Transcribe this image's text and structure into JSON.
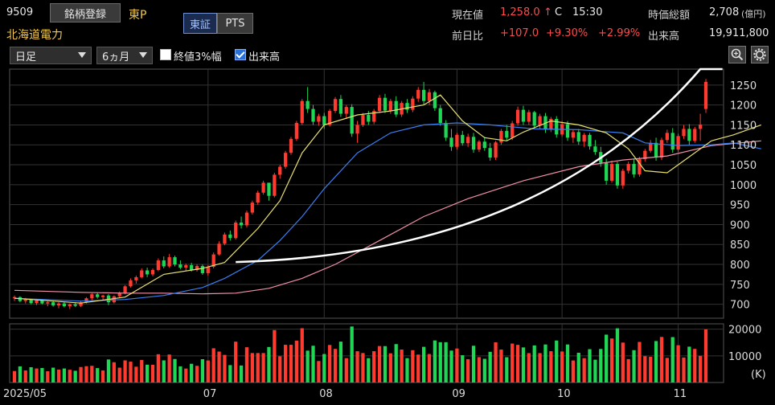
{
  "header": {
    "code": "9509",
    "register_button": "銘柄登録",
    "market": "東P",
    "company": "北海道電力",
    "tabs": [
      {
        "label": "東証",
        "active": true
      },
      {
        "label": "PTS",
        "active": false
      }
    ],
    "current_price_label": "現在値",
    "current_price": "1,258.0",
    "arrow": "↑",
    "price_flag": "C",
    "time": "15:30",
    "change_label": "前日比",
    "change_value": "+107.0",
    "change_pct": "+9.30%",
    "change_pct2": "+2.99%",
    "market_cap_label": "時価総額",
    "market_cap": "2,708",
    "market_cap_unit": "(億円)",
    "volume_label": "出来高",
    "volume": "19,911,800"
  },
  "toolbar": {
    "period": "日足",
    "range": "6ヵ月",
    "close_band_label": "終値3%幅",
    "close_band_checked": false,
    "volume_toggle_label": "出来高",
    "volume_toggle_checked": true,
    "zoom_icon": "magnifier-icon",
    "settings_icon": "gear-icon"
  },
  "colors": {
    "up": "#ff3b30",
    "down": "#1fd655",
    "ma_short": "#e8e070",
    "ma_mid": "#3a7ff0",
    "ma_long": "#f090a8",
    "trendline": "#ffffff",
    "grid": "#333333"
  },
  "chart_data": [
    {
      "type": "candlestick",
      "panel": "price",
      "x_labels": [
        "2025/05",
        "07",
        "08",
        "09",
        "10",
        "11"
      ],
      "y_ticks": [
        700,
        750,
        800,
        850,
        900,
        950,
        1000,
        1050,
        1100,
        1150,
        1200,
        1250
      ],
      "ylim": [
        665,
        1290
      ],
      "grid": true,
      "candles": [
        [
          715,
          722,
          708,
          718
        ],
        [
          718,
          720,
          705,
          708
        ],
        [
          708,
          716,
          702,
          712
        ],
        [
          712,
          714,
          700,
          703
        ],
        [
          703,
          712,
          698,
          710
        ],
        [
          710,
          713,
          700,
          702
        ],
        [
          702,
          708,
          695,
          705
        ],
        [
          705,
          709,
          694,
          697
        ],
        [
          697,
          705,
          690,
          702
        ],
        [
          702,
          706,
          692,
          695
        ],
        [
          695,
          702,
          688,
          700
        ],
        [
          700,
          705,
          693,
          696
        ],
        [
          696,
          708,
          693,
          705
        ],
        [
          705,
          718,
          702,
          715
        ],
        [
          715,
          728,
          710,
          725
        ],
        [
          725,
          730,
          714,
          718
        ],
        [
          718,
          724,
          710,
          722
        ],
        [
          722,
          726,
          698,
          705
        ],
        [
          705,
          722,
          702,
          720
        ],
        [
          720,
          732,
          717,
          728
        ],
        [
          728,
          748,
          725,
          745
        ],
        [
          745,
          765,
          742,
          760
        ],
        [
          760,
          772,
          752,
          768
        ],
        [
          768,
          790,
          765,
          785
        ],
        [
          785,
          792,
          768,
          775
        ],
        [
          775,
          790,
          770,
          786
        ],
        [
          786,
          815,
          783,
          810
        ],
        [
          810,
          820,
          790,
          795
        ],
        [
          795,
          826,
          792,
          818
        ],
        [
          818,
          822,
          795,
          800
        ],
        [
          800,
          810,
          788,
          792
        ],
        [
          792,
          802,
          785,
          798
        ],
        [
          798,
          804,
          782,
          786
        ],
        [
          786,
          800,
          782,
          796
        ],
        [
          796,
          800,
          774,
          778
        ],
        [
          778,
          798,
          772,
          794
        ],
        [
          794,
          830,
          790,
          825
        ],
        [
          825,
          858,
          822,
          852
        ],
        [
          852,
          880,
          848,
          875
        ],
        [
          875,
          885,
          860,
          866
        ],
        [
          866,
          910,
          862,
          905
        ],
        [
          905,
          920,
          890,
          898
        ],
        [
          898,
          935,
          893,
          930
        ],
        [
          930,
          960,
          925,
          955
        ],
        [
          955,
          985,
          950,
          980
        ],
        [
          980,
          1010,
          975,
          1005
        ],
        [
          1005,
          1000,
          960,
          972
        ],
        [
          972,
          1030,
          968,
          1025
        ],
        [
          1025,
          1050,
          1015,
          1045
        ],
        [
          1045,
          1085,
          1040,
          1080
        ],
        [
          1080,
          1120,
          1075,
          1115
        ],
        [
          1115,
          1160,
          1110,
          1155
        ],
        [
          1155,
          1215,
          1150,
          1210
        ],
        [
          1210,
          1245,
          1180,
          1190
        ],
        [
          1190,
          1200,
          1150,
          1158
        ],
        [
          1158,
          1178,
          1148,
          1172
        ],
        [
          1172,
          1180,
          1140,
          1150
        ],
        [
          1150,
          1190,
          1146,
          1185
        ],
        [
          1185,
          1220,
          1180,
          1215
        ],
        [
          1215,
          1225,
          1170,
          1178
        ],
        [
          1178,
          1200,
          1165,
          1195
        ],
        [
          1195,
          1202,
          1120,
          1128
        ],
        [
          1128,
          1160,
          1105,
          1150
        ],
        [
          1150,
          1180,
          1145,
          1175
        ],
        [
          1175,
          1185,
          1150,
          1158
        ],
        [
          1158,
          1190,
          1152,
          1185
        ],
        [
          1185,
          1225,
          1180,
          1218
        ],
        [
          1218,
          1228,
          1180,
          1186
        ],
        [
          1186,
          1215,
          1178,
          1210
        ],
        [
          1210,
          1222,
          1170,
          1176
        ],
        [
          1176,
          1210,
          1170,
          1205
        ],
        [
          1205,
          1215,
          1180,
          1188
        ],
        [
          1188,
          1222,
          1182,
          1216
        ],
        [
          1216,
          1245,
          1208,
          1238
        ],
        [
          1238,
          1258,
          1200,
          1210
        ],
        [
          1210,
          1240,
          1200,
          1232
        ],
        [
          1232,
          1236,
          1185,
          1192
        ],
        [
          1192,
          1200,
          1148,
          1155
        ],
        [
          1155,
          1162,
          1110,
          1118
        ],
        [
          1118,
          1140,
          1085,
          1095
        ],
        [
          1095,
          1130,
          1088,
          1125
        ],
        [
          1125,
          1135,
          1098,
          1104
        ],
        [
          1104,
          1128,
          1095,
          1120
        ],
        [
          1120,
          1130,
          1080,
          1088
        ],
        [
          1088,
          1112,
          1082,
          1108
        ],
        [
          1108,
          1120,
          1085,
          1092
        ],
        [
          1092,
          1105,
          1060,
          1068
        ],
        [
          1068,
          1110,
          1062,
          1106
        ],
        [
          1106,
          1140,
          1100,
          1135
        ],
        [
          1135,
          1150,
          1110,
          1118
        ],
        [
          1118,
          1160,
          1112,
          1154
        ],
        [
          1154,
          1196,
          1148,
          1188
        ],
        [
          1188,
          1198,
          1150,
          1158
        ],
        [
          1158,
          1188,
          1150,
          1182
        ],
        [
          1182,
          1185,
          1140,
          1148
        ],
        [
          1148,
          1178,
          1140,
          1172
        ],
        [
          1172,
          1180,
          1130,
          1138
        ],
        [
          1138,
          1170,
          1132,
          1165
        ],
        [
          1165,
          1172,
          1118,
          1126
        ],
        [
          1126,
          1160,
          1120,
          1152
        ],
        [
          1152,
          1160,
          1110,
          1118
        ],
        [
          1118,
          1138,
          1105,
          1132
        ],
        [
          1132,
          1140,
          1100,
          1108
        ],
        [
          1108,
          1130,
          1095,
          1125
        ],
        [
          1125,
          1130,
          1088,
          1096
        ],
        [
          1096,
          1112,
          1075,
          1082
        ],
        [
          1082,
          1095,
          1045,
          1055
        ],
        [
          1055,
          1065,
          1000,
          1010
        ],
        [
          1010,
          1060,
          1005,
          1052
        ],
        [
          1052,
          1058,
          990,
          998
        ],
        [
          998,
          1040,
          990,
          1035
        ],
        [
          1035,
          1058,
          1028,
          1052
        ],
        [
          1052,
          1065,
          1018,
          1026
        ],
        [
          1026,
          1070,
          1020,
          1064
        ],
        [
          1064,
          1090,
          1058,
          1085
        ],
        [
          1085,
          1112,
          1080,
          1105
        ],
        [
          1105,
          1118,
          1060,
          1068
        ],
        [
          1068,
          1118,
          1062,
          1112
        ],
        [
          1112,
          1138,
          1105,
          1130
        ],
        [
          1130,
          1142,
          1080,
          1088
        ],
        [
          1088,
          1128,
          1082,
          1122
        ],
        [
          1122,
          1150,
          1115,
          1140
        ],
        [
          1140,
          1152,
          1100,
          1110
        ],
        [
          1110,
          1145,
          1105,
          1140
        ],
        [
          1140,
          1178,
          1110,
          1151
        ],
        [
          1190,
          1265,
          1180,
          1258
        ]
      ],
      "ma_short": [
        [
          0,
          715
        ],
        [
          12,
          703
        ],
        [
          20,
          718
        ],
        [
          27,
          775
        ],
        [
          34,
          790
        ],
        [
          38,
          805
        ],
        [
          44,
          890
        ],
        [
          48,
          960
        ],
        [
          52,
          1080
        ],
        [
          56,
          1150
        ],
        [
          62,
          1175
        ],
        [
          68,
          1185
        ],
        [
          74,
          1200
        ],
        [
          77,
          1225
        ],
        [
          81,
          1160
        ],
        [
          85,
          1118
        ],
        [
          89,
          1110
        ],
        [
          92,
          1132
        ],
        [
          97,
          1160
        ],
        [
          102,
          1150
        ],
        [
          107,
          1130
        ],
        [
          111,
          1090
        ],
        [
          114,
          1035
        ],
        [
          118,
          1030
        ],
        [
          122,
          1070
        ],
        [
          126,
          1110
        ],
        [
          130,
          1125
        ],
        [
          135,
          1150
        ]
      ],
      "ma_mid": [
        [
          0,
          715
        ],
        [
          12,
          708
        ],
        [
          20,
          712
        ],
        [
          27,
          722
        ],
        [
          34,
          742
        ],
        [
          38,
          765
        ],
        [
          44,
          810
        ],
        [
          48,
          860
        ],
        [
          52,
          920
        ],
        [
          56,
          990
        ],
        [
          62,
          1080
        ],
        [
          68,
          1130
        ],
        [
          74,
          1150
        ],
        [
          80,
          1155
        ],
        [
          86,
          1150
        ],
        [
          94,
          1140
        ],
        [
          102,
          1138
        ],
        [
          110,
          1130
        ],
        [
          114,
          1105
        ],
        [
          120,
          1098
        ],
        [
          126,
          1100
        ],
        [
          130,
          1105
        ],
        [
          135,
          1090
        ]
      ],
      "ma_long": [
        [
          0,
          735
        ],
        [
          12,
          730
        ],
        [
          20,
          728
        ],
        [
          27,
          728
        ],
        [
          34,
          726
        ],
        [
          40,
          728
        ],
        [
          46,
          740
        ],
        [
          52,
          765
        ],
        [
          58,
          800
        ],
        [
          66,
          860
        ],
        [
          74,
          920
        ],
        [
          82,
          965
        ],
        [
          92,
          1010
        ],
        [
          102,
          1045
        ],
        [
          110,
          1062
        ],
        [
          118,
          1072
        ],
        [
          126,
          1098
        ],
        [
          135,
          1110
        ]
      ],
      "trendline": {
        "from": [
          40,
          806
        ],
        "to": [
          124,
          1290
        ]
      }
    },
    {
      "type": "bar",
      "panel": "volume",
      "y_ticks": [
        10000,
        20000
      ],
      "y_unit": "(K)",
      "ylim": [
        0,
        22000
      ]
    }
  ]
}
